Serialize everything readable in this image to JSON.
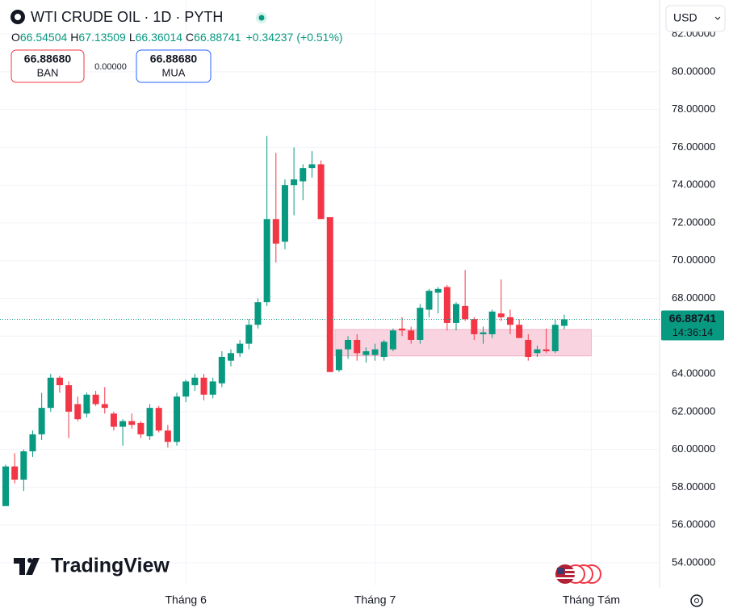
{
  "chart_data": {
    "type": "candlestick",
    "title": "WTI CRUDE OIL · 1D · PYTH",
    "header": {
      "o": "O",
      "h": "H",
      "l": "L",
      "c": "C",
      "change": "+0.34237",
      "change_pct": "(+0.51%)"
    },
    "sell": {
      "price": "66.88680",
      "label": "BAN"
    },
    "spread": "0.00000",
    "buy": {
      "price": "66.88680",
      "label": "MUA"
    },
    "currency": "USD",
    "countdown": "14:36:14",
    "brand": "TradingView",
    "categories": [
      null,
      null,
      null,
      null,
      null,
      null,
      null,
      null,
      null,
      null,
      null,
      null,
      null,
      null,
      null,
      null,
      null,
      null,
      null,
      null,
      "Tháng 6",
      null,
      null,
      null,
      null,
      null,
      null,
      null,
      null,
      null,
      null,
      null,
      null,
      null,
      null,
      null,
      null,
      null,
      null,
      null,
      null,
      "Tháng 7",
      null,
      null,
      null,
      null,
      null,
      null,
      null,
      null,
      null,
      null,
      null,
      null,
      null,
      null,
      null,
      null,
      null,
      null,
      null,
      null,
      null,
      null,
      null,
      "Tháng Tám"
    ],
    "open": [
      57.0,
      59.1,
      58.4,
      59.9,
      60.8,
      62.2,
      63.8,
      63.4,
      62.4,
      61.9,
      62.9,
      62.4,
      61.9,
      61.2,
      61.5,
      61.4,
      60.7,
      62.2,
      61.0,
      60.4,
      62.8,
      63.4,
      63.8,
      62.9,
      63.5,
      64.7,
      65.1,
      65.6,
      66.6,
      67.8,
      72.2,
      71.0,
      74.0,
      74.2,
      74.9,
      75.1,
      72.3,
      64.2,
      65.3,
      65.8,
      65.0,
      65.0,
      64.9,
      65.3,
      66.4,
      66.3,
      65.8,
      67.4,
      68.3,
      68.6,
      66.7,
      67.6,
      66.9,
      66.1,
      66.1,
      67.2,
      67.0,
      66.6,
      65.8,
      65.1,
      65.3,
      65.2,
      66.54504,
      null,
      null,
      null
    ],
    "high": [
      59.2,
      59.8,
      60.0,
      61.0,
      63.0,
      64.0,
      63.9,
      63.6,
      62.8,
      63.0,
      63.1,
      63.3,
      62.0,
      61.6,
      61.9,
      61.5,
      62.4,
      62.3,
      61.3,
      63.0,
      63.7,
      64.0,
      64.0,
      63.8,
      65.2,
      65.3,
      65.8,
      66.9,
      68.0,
      76.6,
      75.7,
      74.3,
      76.0,
      75.1,
      75.8,
      75.3,
      72.3,
      65.3,
      66.0,
      66.1,
      65.4,
      65.6,
      65.8,
      66.4,
      67.0,
      66.5,
      67.7,
      68.5,
      68.6,
      68.7,
      67.8,
      69.5,
      67.0,
      66.5,
      67.4,
      69.0,
      67.4,
      66.9,
      66.1,
      65.5,
      66.4,
      66.9,
      67.13509,
      null,
      null,
      null
    ],
    "low": [
      57.0,
      58.2,
      57.8,
      59.6,
      60.5,
      62.0,
      63.0,
      60.6,
      61.5,
      61.7,
      62.3,
      61.9,
      61.0,
      60.2,
      61.1,
      60.6,
      60.5,
      60.9,
      60.1,
      60.2,
      62.5,
      63.1,
      62.6,
      62.7,
      63.3,
      64.4,
      64.9,
      65.3,
      66.4,
      67.6,
      69.9,
      70.6,
      72.4,
      73.2,
      74.4,
      72.2,
      64.1,
      64.1,
      64.8,
      64.7,
      64.6,
      64.7,
      64.7,
      65.2,
      66.0,
      65.6,
      65.6,
      67.0,
      67.2,
      66.3,
      66.3,
      66.8,
      65.8,
      65.6,
      65.9,
      66.8,
      66.1,
      65.9,
      64.7,
      64.9,
      65.1,
      65.1,
      66.36014,
      null,
      null,
      null
    ],
    "close": [
      59.1,
      58.4,
      59.9,
      60.8,
      62.2,
      63.8,
      63.4,
      62.0,
      61.6,
      62.9,
      62.4,
      62.2,
      61.2,
      61.5,
      61.3,
      60.8,
      62.2,
      61.0,
      60.4,
      62.8,
      63.6,
      63.8,
      62.9,
      63.6,
      64.9,
      65.1,
      65.6,
      66.6,
      67.8,
      72.2,
      70.9,
      74.0,
      74.3,
      74.9,
      75.1,
      72.2,
      64.1,
      65.3,
      65.8,
      65.1,
      65.2,
      65.3,
      65.7,
      66.3,
      66.3,
      65.8,
      67.5,
      68.4,
      68.5,
      66.7,
      67.7,
      66.9,
      66.1,
      66.2,
      67.3,
      67.0,
      66.6,
      65.9,
      64.9,
      65.3,
      65.2,
      66.6,
      66.88741,
      null,
      null,
      null
    ],
    "up_color": "#089981",
    "down_color": "#f23645",
    "zone": [
      64.95,
      66.35
    ],
    "zone_color": "#f7c9d8",
    "ylim": [
      52.8,
      83.8
    ],
    "yticks": [
      {
        "value": 54,
        "label": "54.00000"
      },
      {
        "value": 56,
        "label": "56.00000"
      },
      {
        "value": 58,
        "label": "58.00000"
      },
      {
        "value": 60,
        "label": "60.00000"
      },
      {
        "value": 62,
        "label": "62.00000"
      },
      {
        "value": 64,
        "label": "64.00000"
      },
      {
        "value": 66,
        "label": "66.00000"
      },
      {
        "value": 68,
        "label": "68.00000"
      },
      {
        "value": 70,
        "label": "70.00000"
      },
      {
        "value": 72,
        "label": "72.00000"
      },
      {
        "value": 74,
        "label": "74.00000"
      },
      {
        "value": 76,
        "label": "76.00000"
      },
      {
        "value": 78,
        "label": "78.00000"
      },
      {
        "value": 80,
        "label": "80.00000"
      },
      {
        "value": 82,
        "label": "82.00000"
      }
    ],
    "grid": true
  }
}
